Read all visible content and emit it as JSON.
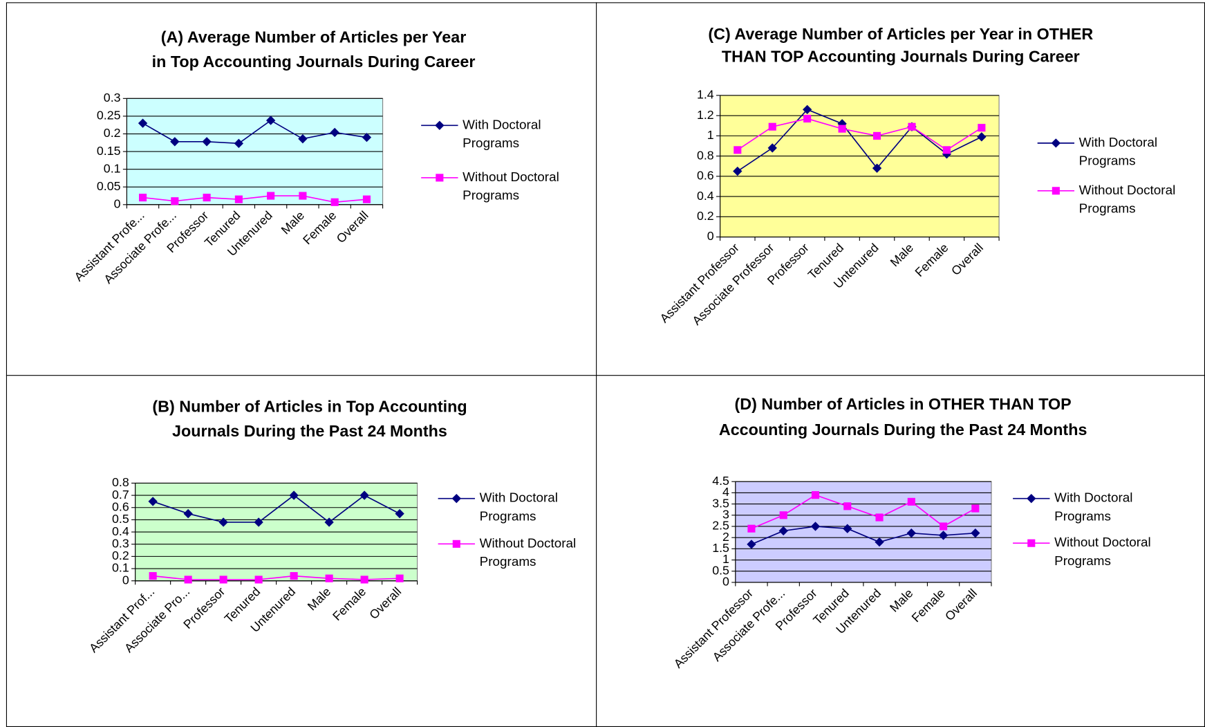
{
  "chart_data": [
    {
      "type": "line",
      "title": "(A) Average Number of Articles per Year in Top Accounting Journals During Career",
      "categories": [
        "Assistant Profe...",
        "Associate Profe...",
        "Professor",
        "Tenured",
        "Untenured",
        "Male",
        "Female",
        "Overall"
      ],
      "series": [
        {
          "name": "With Doctoral Programs",
          "color": "#000080",
          "values": [
            0.23,
            0.178,
            0.178,
            0.173,
            0.238,
            0.186,
            0.204,
            0.19
          ]
        },
        {
          "name": "Without Doctoral Programs",
          "color": "#ff00ff",
          "values": [
            0.02,
            0.01,
            0.02,
            0.015,
            0.025,
            0.025,
            0.007,
            0.015
          ]
        }
      ],
      "ylim": [
        0,
        0.3
      ],
      "yticks": [
        0,
        0.05,
        0.1,
        0.15,
        0.2,
        0.25,
        0.3
      ],
      "grid": true,
      "background": "#ccffff",
      "legend": "right"
    },
    {
      "type": "line",
      "title": "(C) Average Number of Articles per Year in OTHER THAN TOP Accounting Journals During Career",
      "categories": [
        "Assistant Professor",
        "Associate Professor",
        "Professor",
        "Tenured",
        "Untenured",
        "Male",
        "Female",
        "Overall"
      ],
      "series": [
        {
          "name": "With Doctoral Programs",
          "color": "#000080",
          "values": [
            0.65,
            0.88,
            1.26,
            1.12,
            0.68,
            1.09,
            0.82,
            0.99
          ]
        },
        {
          "name": "Without Doctoral Programs",
          "color": "#ff00ff",
          "values": [
            0.86,
            1.09,
            1.17,
            1.07,
            1.0,
            1.09,
            0.86,
            1.08
          ]
        }
      ],
      "ylim": [
        0,
        1.4
      ],
      "yticks": [
        0,
        0.2,
        0.4,
        0.6,
        0.8,
        1,
        1.2,
        1.4
      ],
      "grid": true,
      "background": "#ffff99",
      "legend": "right"
    },
    {
      "type": "line",
      "title": "(B) Number of Articles in Top Accounting Journals During the Past 24 Months",
      "categories": [
        "Assistant Prof...",
        "Associate Pro...",
        "Professor",
        "Tenured",
        "Untenured",
        "Male",
        "Female",
        "Overall"
      ],
      "series": [
        {
          "name": "With Doctoral Programs",
          "color": "#000080",
          "values": [
            0.65,
            0.55,
            0.48,
            0.48,
            0.7,
            0.48,
            0.7,
            0.55
          ]
        },
        {
          "name": "Without Doctoral Programs",
          "color": "#ff00ff",
          "values": [
            0.04,
            0.01,
            0.01,
            0.01,
            0.04,
            0.02,
            0.01,
            0.02
          ]
        }
      ],
      "ylim": [
        0,
        0.8
      ],
      "yticks": [
        0,
        0.1,
        0.2,
        0.3,
        0.4,
        0.5,
        0.6,
        0.7,
        0.8
      ],
      "grid": true,
      "background": "#ccffcc",
      "legend": "right"
    },
    {
      "type": "line",
      "title": "(D) Number of Articles in OTHER THAN TOP Accounting Journals During the Past 24 Months",
      "categories": [
        "Assistant Professor",
        "Associate Profe...",
        "Professor",
        "Tenured",
        "Untenured",
        "Male",
        "Female",
        "Overall"
      ],
      "series": [
        {
          "name": "With Doctoral Programs",
          "color": "#000080",
          "values": [
            1.7,
            2.3,
            2.5,
            2.4,
            1.8,
            2.2,
            2.1,
            2.2
          ]
        },
        {
          "name": "Without Doctoral Programs",
          "color": "#ff00ff",
          "values": [
            2.4,
            3.0,
            3.9,
            3.4,
            2.9,
            3.6,
            2.5,
            3.3
          ]
        }
      ],
      "ylim": [
        0,
        4.5
      ],
      "yticks": [
        0,
        0.5,
        1,
        1.5,
        2,
        2.5,
        3,
        3.5,
        4,
        4.5
      ],
      "grid": true,
      "background": "#ccccff",
      "legend": "right"
    }
  ]
}
